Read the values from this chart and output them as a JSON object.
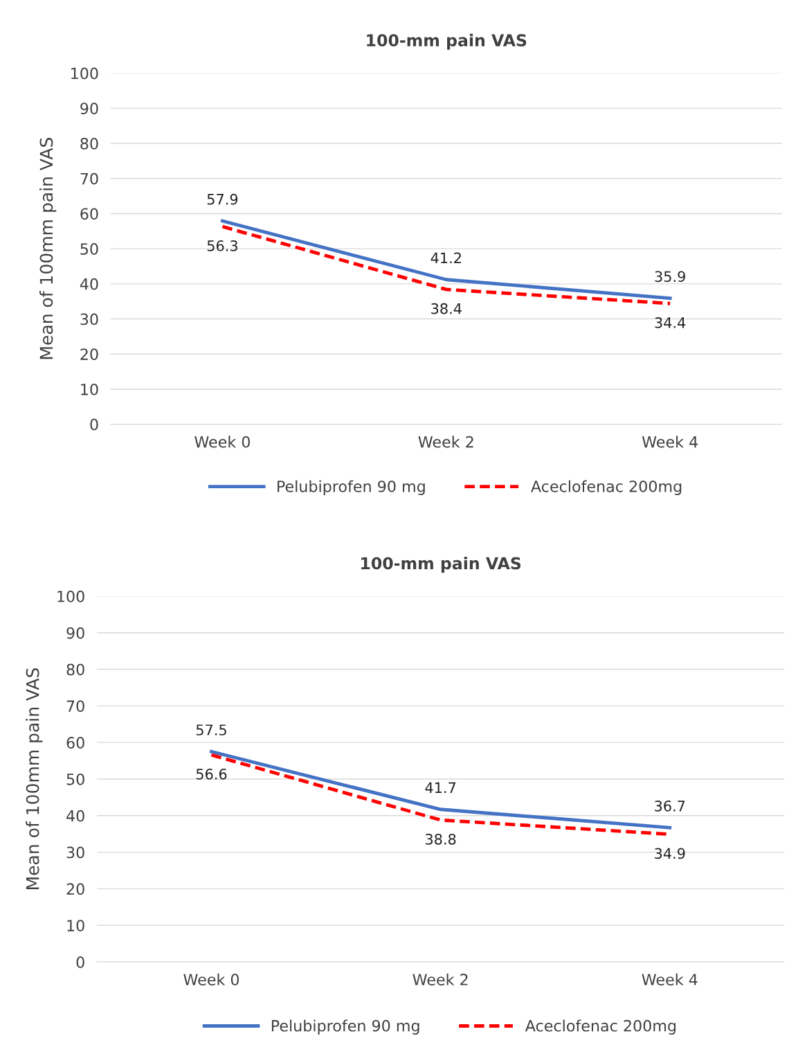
{
  "chart_data": [
    {
      "type": "line",
      "title": "100-mm pain VAS",
      "ylabel": "Mean of 100mm pain VAS",
      "categories": [
        "Week 0",
        "Week 2",
        "Week 4"
      ],
      "ylim": [
        0,
        100
      ],
      "yticks": [
        0,
        10,
        20,
        30,
        40,
        50,
        60,
        70,
        80,
        90,
        100
      ],
      "grid": "y",
      "legend": "bottom",
      "data_labels": true,
      "series": [
        {
          "name": "Pelubiprofen 90 mg",
          "color": "#4472c4",
          "line_style": "solid",
          "values": [
            57.9,
            41.2,
            35.9
          ]
        },
        {
          "name": "Aceclofenac 200mg",
          "color": "#ff0000",
          "line_style": "dashed",
          "values": [
            56.3,
            38.4,
            34.4
          ]
        }
      ]
    },
    {
      "type": "line",
      "title": "100-mm pain VAS",
      "ylabel": "Mean of 100mm pain VAS",
      "categories": [
        "Week 0",
        "Week 2",
        "Week 4"
      ],
      "ylim": [
        0,
        100
      ],
      "yticks": [
        0,
        10,
        20,
        30,
        40,
        50,
        60,
        70,
        80,
        90,
        100
      ],
      "grid": "y",
      "legend": "bottom",
      "data_labels": true,
      "series": [
        {
          "name": "Pelubiprofen 90 mg",
          "color": "#4472c4",
          "line_style": "solid",
          "values": [
            57.5,
            41.7,
            36.7
          ]
        },
        {
          "name": "Aceclofenac 200mg",
          "color": "#ff0000",
          "line_style": "dashed",
          "values": [
            56.6,
            38.8,
            34.9
          ]
        }
      ]
    }
  ]
}
